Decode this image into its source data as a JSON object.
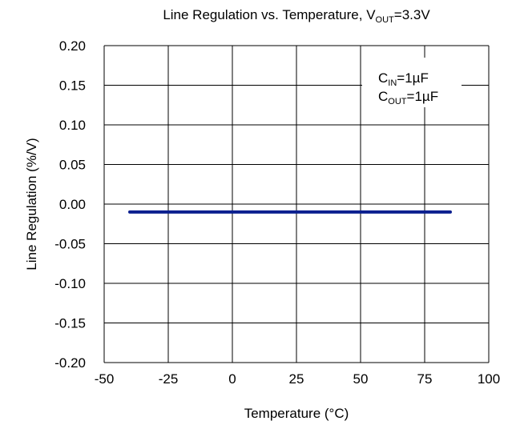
{
  "chart_data": {
    "type": "line",
    "title": {
      "prefix": "Line Regulation vs. Temperature, V",
      "sub": "OUT",
      "suffix": "=3.3V"
    },
    "xlabel": "Temperature (°C)",
    "ylabel": "Line Regulation (%/V)",
    "xlim": [
      -50,
      100
    ],
    "ylim": [
      -0.2,
      0.2
    ],
    "x_ticks": [
      -50,
      -25,
      0,
      25,
      50,
      75,
      100
    ],
    "y_ticks": [
      0.2,
      0.15,
      0.1,
      0.05,
      0.0,
      -0.05,
      -0.1,
      -0.15,
      -0.2
    ],
    "x_tick_labels": [
      "-50",
      "-25",
      "0",
      "25",
      "50",
      "75",
      "100"
    ],
    "y_tick_labels": [
      "0.20",
      "0.15",
      "0.10",
      "0.05",
      "0.00",
      "-0.05",
      "-0.10",
      "-0.15",
      "-0.20"
    ],
    "grid": true,
    "annotations": [
      {
        "prefix": "C",
        "sub": "IN",
        "suffix": "=1µF"
      },
      {
        "prefix": "C",
        "sub": "OUT",
        "suffix": "=1µF"
      }
    ],
    "series": [
      {
        "color": "#0a1f8f",
        "x": [
          -40,
          -25,
          0,
          25,
          50,
          75,
          85
        ],
        "y": [
          -0.01,
          -0.01,
          -0.01,
          -0.01,
          -0.01,
          -0.01,
          -0.01
        ]
      }
    ]
  }
}
